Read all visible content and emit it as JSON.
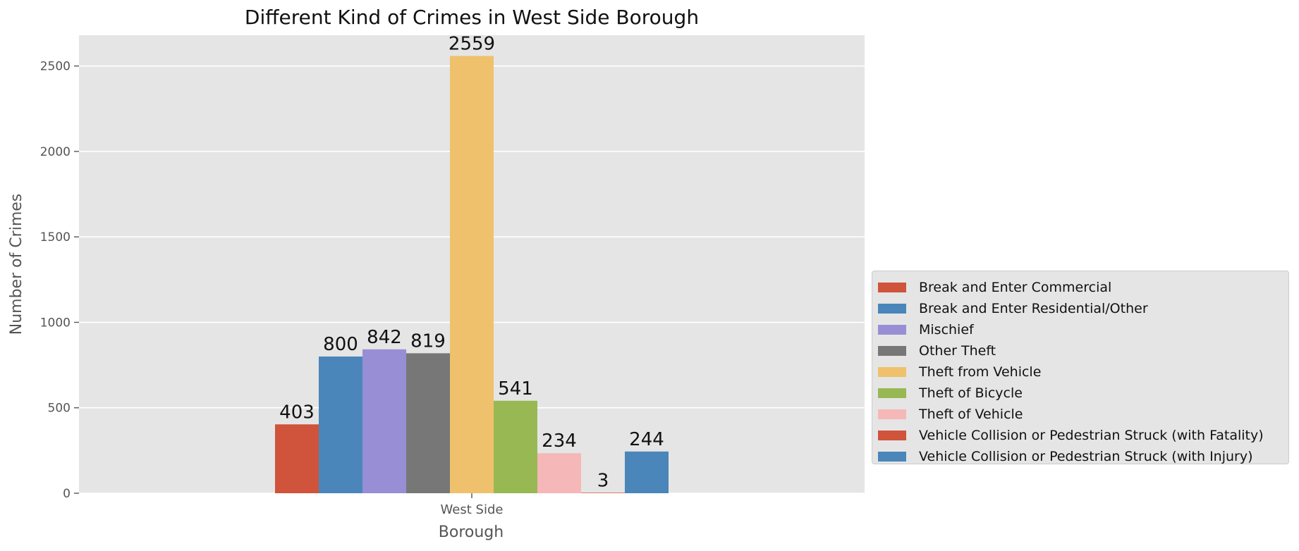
{
  "chart_data": {
    "type": "bar",
    "title": "Different Kind of Crimes in West Side Borough",
    "xlabel": "Borough",
    "ylabel": "Number of Crimes",
    "categories": [
      "West Side"
    ],
    "ylim": [
      0,
      2680
    ],
    "yticks": [
      0,
      500,
      1000,
      1500,
      2000,
      2500
    ],
    "grid": true,
    "legend_position": "right",
    "series": [
      {
        "name": "Break and Enter Commercial",
        "values": [
          403
        ],
        "color": "#d0533b"
      },
      {
        "name": "Break and Enter Residential/Other",
        "values": [
          800
        ],
        "color": "#4a86b9"
      },
      {
        "name": "Mischief",
        "values": [
          842
        ],
        "color": "#988ed5"
      },
      {
        "name": "Other Theft",
        "values": [
          819
        ],
        "color": "#777777"
      },
      {
        "name": "Theft from Vehicle",
        "values": [
          2559
        ],
        "color": "#f0c16c"
      },
      {
        "name": "Theft of Bicycle",
        "values": [
          541
        ],
        "color": "#98b854"
      },
      {
        "name": "Theft of Vehicle",
        "values": [
          234
        ],
        "color": "#f5b7b7"
      },
      {
        "name": "Vehicle Collision or Pedestrian Struck (with Fatality)",
        "values": [
          3
        ],
        "color": "#d0533b"
      },
      {
        "name": "Vehicle Collision or Pedestrian Struck (with Injury)",
        "values": [
          244
        ],
        "color": "#4a86b9"
      }
    ]
  }
}
